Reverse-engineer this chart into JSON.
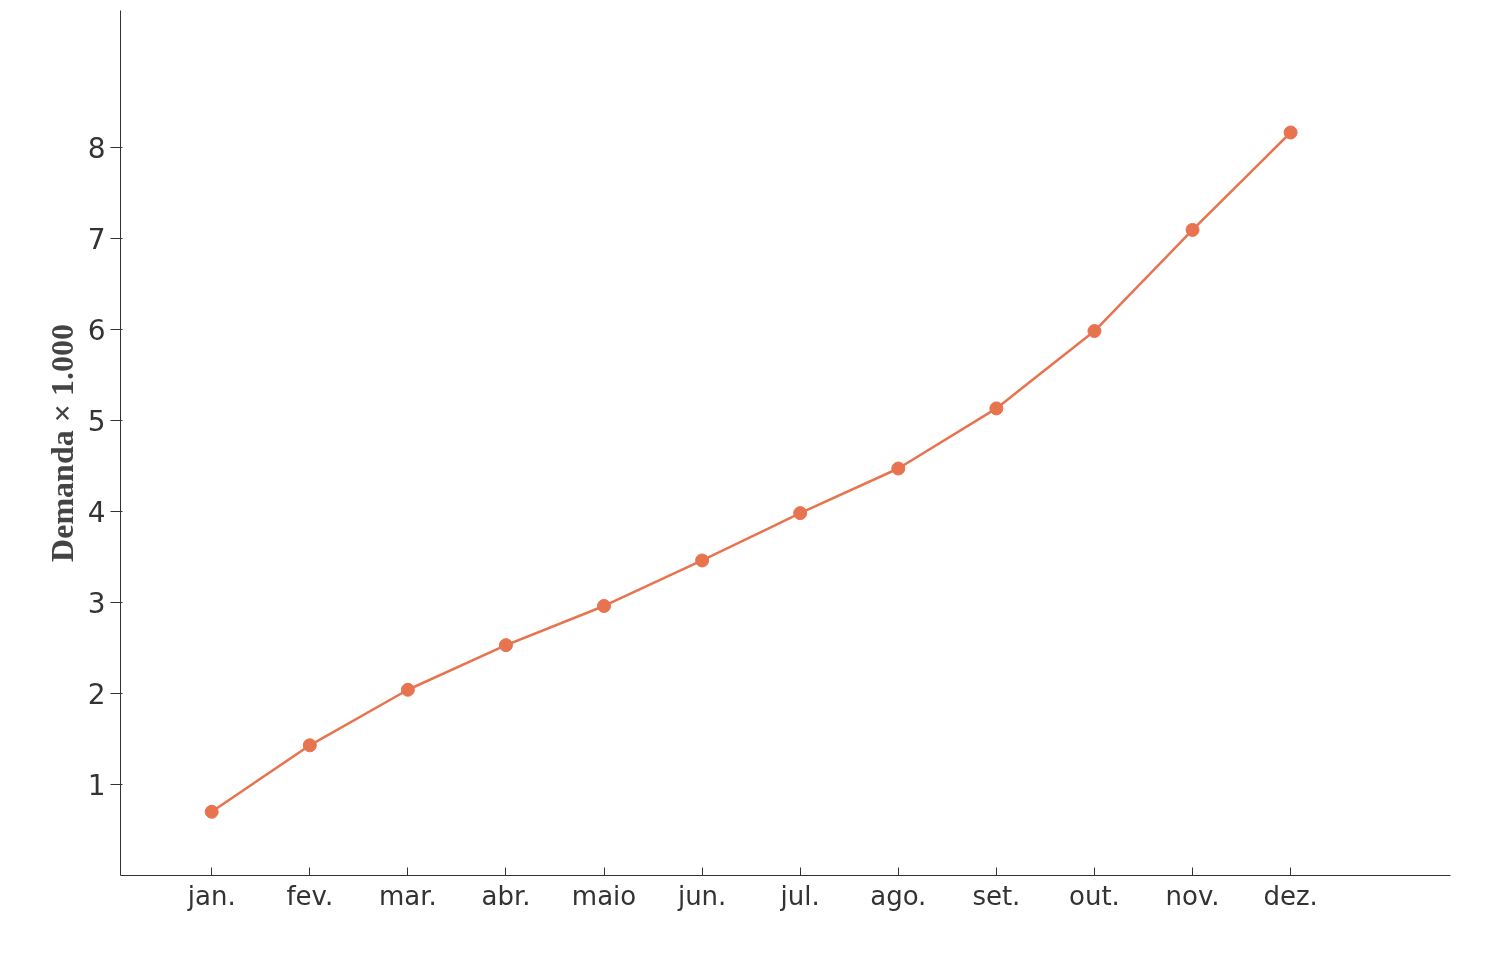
{
  "chart_data": {
    "type": "line",
    "ylabel": "Demanda × 1.000",
    "categories": [
      "jan.",
      "fev.",
      "mar.",
      "abr.",
      "maio",
      "jun.",
      "jul.",
      "ago.",
      "set.",
      "out.",
      "nov.",
      "dez."
    ],
    "series": [
      {
        "color": "#e8734f",
        "values": [
          0.7,
          1.43,
          2.04,
          2.53,
          2.96,
          3.46,
          3.98,
          4.47,
          5.13,
          5.98,
          7.09,
          8.16
        ]
      }
    ],
    "ylim": [
      0,
      9.5
    ],
    "yticks": [
      1,
      2,
      3,
      4,
      5,
      6,
      7,
      8
    ],
    "grid": false,
    "marker": "circle",
    "line_style": "solid"
  }
}
